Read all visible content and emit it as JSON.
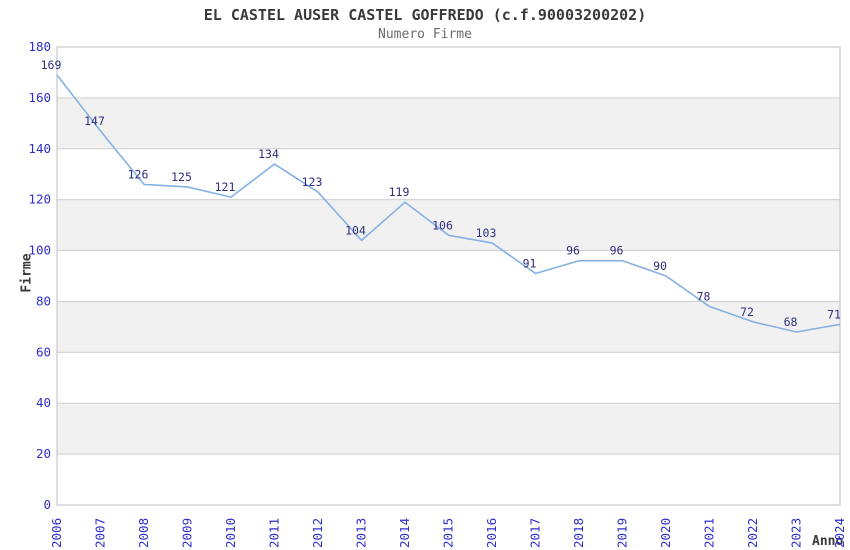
{
  "chart": {
    "title": "EL CASTEL AUSER CASTEL GOFFREDO (c.f.90003200202)",
    "subtitle": "Numero Firme",
    "ylabel": "Firme",
    "xlabel": "Anno"
  },
  "chart_data": {
    "type": "line",
    "title": "EL CASTEL AUSER CASTEL GOFFREDO (c.f.90003200202)",
    "subtitle": "Numero Firme",
    "xlabel": "Anno",
    "ylabel": "Firme",
    "categories": [
      "2006",
      "2007",
      "2008",
      "2009",
      "2010",
      "2011",
      "2012",
      "2013",
      "2014",
      "2015",
      "2016",
      "2017",
      "2018",
      "2019",
      "2020",
      "2021",
      "2022",
      "2023",
      "2024"
    ],
    "series": [
      {
        "name": "Numero Firme",
        "values": [
          169,
          147,
          126,
          125,
          121,
          134,
          123,
          104,
          119,
          106,
          103,
          91,
          96,
          96,
          90,
          78,
          72,
          68,
          71
        ]
      }
    ],
    "ylim": [
      0,
      180
    ],
    "ytick_step": 20,
    "yticks": [
      0,
      20,
      40,
      60,
      80,
      100,
      120,
      140,
      160,
      180
    ],
    "grid": true,
    "alternating_bands": true,
    "legend_position": "none",
    "point_labels_visible": true,
    "colors": {
      "line": "#85b1e3",
      "point_label": "#2f2f7d",
      "tick_label": "#2e2ecc",
      "grid_line": "#cfcfcf",
      "band_fill": "#f1f1f1",
      "plot_border": "#c9c9c9",
      "title": "#3a3a3a",
      "subtitle": "#6b6b6b",
      "axis_title": "#3a3a3a",
      "background": "#ffffff"
    }
  }
}
